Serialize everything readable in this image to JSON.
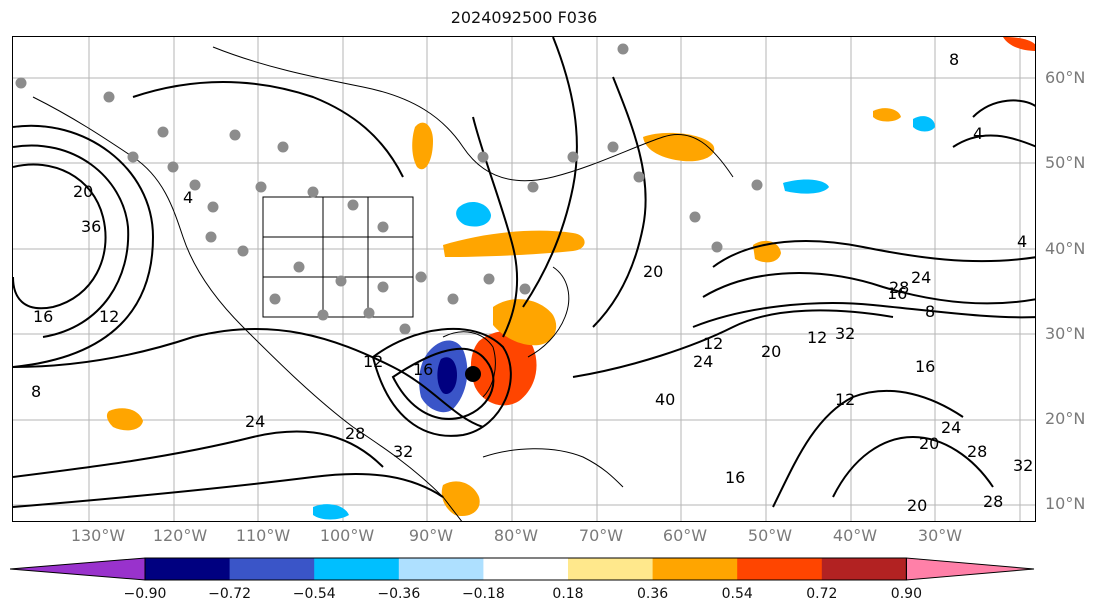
{
  "title": "2024092500 F036",
  "lat_labels": [
    "60°N",
    "50°N",
    "40°N",
    "30°N",
    "20°N",
    "10°N"
  ],
  "lon_labels": [
    "130°W",
    "120°W",
    "110°W",
    "100°W",
    "90°W",
    "80°W",
    "70°W",
    "60°W",
    "50°W",
    "40°W",
    "30°W"
  ],
  "colorbar": {
    "ticks": [
      "−0.90",
      "−0.72",
      "−0.54",
      "−0.36",
      "−0.18",
      "0.18",
      "0.36",
      "0.54",
      "0.72",
      "0.90"
    ],
    "colors": [
      "#9932cc",
      "#000080",
      "#3a55c8",
      "#00bfff",
      "#aee0ff",
      "#ffffff",
      "#ffe88c",
      "#ffa500",
      "#ff4500",
      "#b22222",
      "#ff80a8"
    ]
  },
  "contour_labels": [
    "16",
    "12",
    "8",
    "4",
    "20",
    "24",
    "28",
    "32",
    "36",
    "12",
    "16",
    "20",
    "4",
    "8",
    "24",
    "28",
    "32",
    "20",
    "12",
    "16",
    "24",
    "40",
    "12",
    "16",
    "20",
    "24",
    "28",
    "32",
    "28",
    "20",
    "4",
    "8",
    "12",
    "16"
  ],
  "storm_marker": "hurricane-center"
}
